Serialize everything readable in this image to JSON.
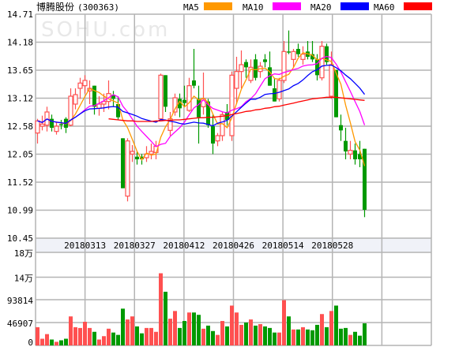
{
  "header": {
    "stock_name": "博腾股份",
    "stock_code": "(300363)"
  },
  "watermark": "SOHU.com",
  "legend": [
    {
      "label": "MA5",
      "color": "#ff9900"
    },
    {
      "label": "MA10",
      "color": "#ff00ff"
    },
    {
      "label": "MA20",
      "color": "#0000ff"
    },
    {
      "label": "MA60",
      "color": "#ff0000"
    }
  ],
  "colors": {
    "up": "#ff5050",
    "down": "#009900",
    "grid": "#b4b4b4",
    "date_band": "#f0f2f8"
  },
  "chart_data": [
    {
      "type": "candlestick",
      "price_ticks": [
        "14.71",
        "14.18",
        "13.65",
        "13.12",
        "12.58",
        "12.05",
        "11.52",
        "10.99",
        "10.45"
      ],
      "ylim": [
        10.45,
        14.71
      ],
      "grid": true,
      "date_labels": [
        "20180313",
        "20180327",
        "20180412",
        "20180426",
        "20180514",
        "20180528"
      ],
      "ohlc": [
        [
          12.45,
          12.72,
          12.25,
          12.68
        ],
        [
          12.58,
          12.78,
          12.5,
          12.62
        ],
        [
          12.6,
          12.95,
          12.48,
          12.85
        ],
        [
          12.72,
          12.8,
          12.48,
          12.55
        ],
        [
          12.48,
          12.65,
          12.42,
          12.58
        ],
        [
          12.62,
          12.7,
          12.52,
          12.6
        ],
        [
          12.72,
          12.75,
          12.45,
          12.55
        ],
        [
          12.6,
          13.3,
          12.58,
          13.15
        ],
        [
          13.0,
          13.3,
          12.9,
          13.18
        ],
        [
          13.3,
          13.5,
          13.1,
          13.4
        ],
        [
          13.35,
          13.55,
          13.2,
          13.45
        ],
        [
          13.25,
          13.45,
          13.0,
          13.3
        ],
        [
          13.35,
          13.35,
          12.8,
          12.95
        ],
        [
          12.92,
          13.15,
          12.78,
          13.0
        ],
        [
          13.0,
          13.2,
          12.85,
          13.05
        ],
        [
          13.05,
          13.45,
          12.9,
          13.2
        ],
        [
          13.18,
          13.25,
          12.95,
          13.1
        ],
        [
          13.0,
          13.15,
          12.7,
          12.75
        ],
        [
          12.35,
          12.35,
          11.4,
          11.4
        ],
        [
          11.25,
          12.35,
          11.15,
          12.3
        ],
        [
          12.05,
          12.22,
          11.9,
          12.1
        ],
        [
          12.0,
          12.1,
          11.85,
          11.95
        ],
        [
          12.0,
          12.05,
          11.85,
          11.95
        ],
        [
          11.98,
          12.2,
          11.9,
          12.05
        ],
        [
          12.05,
          12.25,
          11.95,
          12.1
        ],
        [
          12.08,
          12.3,
          11.95,
          12.2
        ],
        [
          12.72,
          13.58,
          12.7,
          13.55
        ],
        [
          13.55,
          13.55,
          12.85,
          12.95
        ],
        [
          12.5,
          12.85,
          12.4,
          12.72
        ],
        [
          12.85,
          13.2,
          12.78,
          13.12
        ],
        [
          13.1,
          13.2,
          12.75,
          12.92
        ],
        [
          13.08,
          13.35,
          12.95,
          13.02
        ],
        [
          12.88,
          13.5,
          12.85,
          13.35
        ],
        [
          13.45,
          14.05,
          13.3,
          13.35
        ],
        [
          13.1,
          13.35,
          12.25,
          12.75
        ],
        [
          12.95,
          13.6,
          12.8,
          13.1
        ],
        [
          13.05,
          13.1,
          12.55,
          12.6
        ],
        [
          12.58,
          12.8,
          12.05,
          12.25
        ],
        [
          12.3,
          12.45,
          12.2,
          12.4
        ],
        [
          12.4,
          12.85,
          12.3,
          12.8
        ],
        [
          12.85,
          13.0,
          12.6,
          12.7
        ],
        [
          12.4,
          13.62,
          12.3,
          13.55
        ],
        [
          13.3,
          13.9,
          13.0,
          13.62
        ],
        [
          13.62,
          14.02,
          13.3,
          13.75
        ],
        [
          13.8,
          13.85,
          13.5,
          13.7
        ],
        [
          13.45,
          13.85,
          13.4,
          13.7
        ],
        [
          13.85,
          13.95,
          13.45,
          13.5
        ],
        [
          13.62,
          13.8,
          13.5,
          13.72
        ],
        [
          13.85,
          13.95,
          13.7,
          13.8
        ],
        [
          13.7,
          14.0,
          13.35,
          13.35
        ],
        [
          13.3,
          13.5,
          13.05,
          13.05
        ],
        [
          13.1,
          13.5,
          13.05,
          13.45
        ],
        [
          13.45,
          14.2,
          13.4,
          14.0
        ],
        [
          14.0,
          14.4,
          13.95,
          13.98
        ],
        [
          13.85,
          14.05,
          13.7,
          14.0
        ],
        [
          14.05,
          14.15,
          13.9,
          13.95
        ],
        [
          13.85,
          14.1,
          13.75,
          13.95
        ],
        [
          14.0,
          14.2,
          13.85,
          13.9
        ],
        [
          13.95,
          14.2,
          13.8,
          13.85
        ],
        [
          13.85,
          13.95,
          13.45,
          13.55
        ],
        [
          13.5,
          14.2,
          13.45,
          14.1
        ],
        [
          14.1,
          14.15,
          13.75,
          13.8
        ],
        [
          13.15,
          14.0,
          13.1,
          13.75
        ],
        [
          13.65,
          13.65,
          12.75,
          12.75
        ],
        [
          12.6,
          12.8,
          12.3,
          12.5
        ],
        [
          12.3,
          12.55,
          11.95,
          12.1
        ],
        [
          12.05,
          12.3,
          11.95,
          12.12
        ],
        [
          12.12,
          12.25,
          11.85,
          11.95
        ],
        [
          12.05,
          12.3,
          11.8,
          11.95
        ],
        [
          12.15,
          12.15,
          10.85,
          10.99
        ]
      ],
      "ma60": [
        null,
        null,
        null,
        null,
        null,
        null,
        null,
        null,
        null,
        null,
        null,
        null,
        null,
        null,
        null,
        12.72,
        12.71,
        12.7,
        12.69,
        12.68,
        12.68,
        12.67,
        12.67,
        12.67,
        12.67,
        12.68,
        12.68,
        12.69,
        12.69,
        12.7,
        12.7,
        12.71,
        12.72,
        12.73,
        12.74,
        12.74,
        12.75,
        12.75,
        12.76,
        12.77,
        12.78,
        12.8,
        12.82,
        12.84,
        12.86,
        12.87,
        12.89,
        12.9,
        12.92,
        12.93,
        12.95,
        12.96,
        12.98,
        13.0,
        13.02,
        13.04,
        13.06,
        13.08,
        13.1,
        13.11,
        13.12,
        13.13,
        13.13,
        13.13,
        13.12,
        13.11,
        13.1,
        13.09,
        13.08,
        13.07
      ]
    },
    {
      "type": "bar",
      "volume_ticks": [
        "18万",
        "14万",
        "93814",
        "46907",
        "0"
      ],
      "volume": [
        37400,
        13700,
        23200,
        12100,
        7400,
        10500,
        13700,
        59500,
        37400,
        35800,
        48500,
        35800,
        27900,
        12100,
        19000,
        34300,
        26400,
        21600,
        75400,
        53200,
        59500,
        39000,
        24800,
        35800,
        35800,
        27900,
        148000,
        110100,
        54800,
        70600,
        35800,
        50100,
        67500,
        67500,
        62700,
        34300,
        40600,
        29500,
        21600,
        50100,
        39000,
        81700,
        67500,
        42200,
        46900,
        53200,
        40600,
        43700,
        39000,
        35800,
        26400,
        26400,
        92800,
        59500,
        32700,
        32700,
        37400,
        32700,
        31100,
        42200,
        64300,
        37400,
        70600,
        81700,
        34300,
        35800,
        21600,
        27900,
        20000,
        45300
      ]
    }
  ]
}
